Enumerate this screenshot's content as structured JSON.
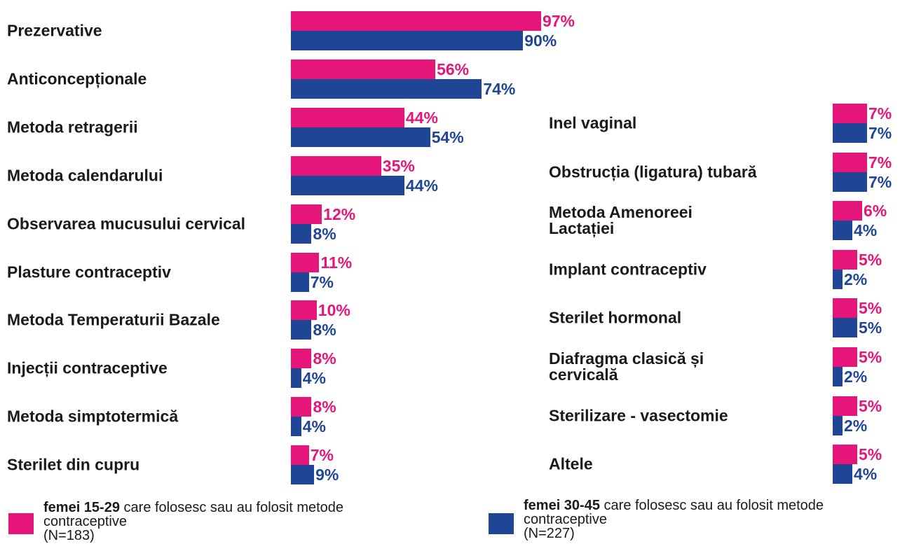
{
  "chart_data": [
    {
      "type": "hbar",
      "categories": [
        "Prezervative",
        "Anticoncepționale",
        "Metoda retragerii",
        "Metoda calendarului",
        "Observarea mucusului cervical",
        "Plasture contraceptiv",
        "Metoda Temperaturii Bazale",
        "Injecții contraceptive",
        "Metoda simptotermică",
        "Sterilet din cupru"
      ],
      "series": [
        {
          "name": "femei 15-29",
          "color": "#e5157a",
          "values": [
            97,
            56,
            44,
            35,
            12,
            11,
            10,
            8,
            8,
            7
          ],
          "value_labels": [
            "97%",
            "56%",
            "44%",
            "35%",
            "12%",
            "11%",
            "10%",
            "8%",
            "8%",
            "7%"
          ]
        },
        {
          "name": "femei 30-45",
          "color": "#1f4596",
          "values": [
            90,
            74,
            54,
            44,
            8,
            7,
            8,
            4,
            4,
            9
          ],
          "value_labels": [
            "90%",
            "74%",
            "54%",
            "44%",
            "8%",
            "7%",
            "8%",
            "4%",
            "4%",
            "9%"
          ]
        }
      ]
    },
    {
      "type": "hbar",
      "categories": [
        "Inel vaginal",
        "Obstrucția (ligatura) tubară",
        "Metoda Amenoreei Lactației",
        "Implant contraceptiv",
        "Sterilet hormonal",
        "Diafragma clasică și cervicală",
        "Sterilizare - vasectomie",
        "Altele"
      ],
      "series": [
        {
          "color": "#e5157a",
          "values": [
            7,
            7,
            6,
            5,
            5,
            5,
            5,
            5
          ],
          "value_labels": [
            "7%",
            "7%",
            "6%",
            "5%",
            "5%",
            "5%",
            "5%",
            "5%"
          ]
        },
        {
          "color": "#1f4596",
          "values": [
            7,
            7,
            4,
            2,
            5,
            2,
            2,
            4
          ],
          "value_labels": [
            "7%",
            "7%",
            "4%",
            "2%",
            "5%",
            "2%",
            "2%",
            "4%"
          ]
        }
      ]
    }
  ],
  "legend": [
    {
      "text": "care folosesc sau au folosit metode contraceptive",
      "note": "(N=183)"
    },
    {
      "text": "care folosesc sau au folosit metode contraceptive",
      "note": "(N=227)"
    }
  ]
}
